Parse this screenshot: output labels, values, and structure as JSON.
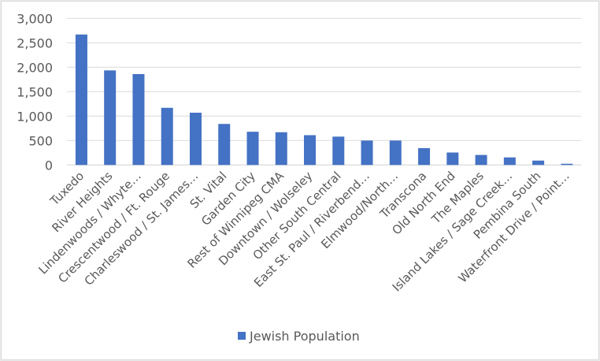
{
  "chart_data": {
    "type": "bar",
    "title": "",
    "xlabel": "",
    "ylabel": "",
    "ylim": [
      0,
      3000
    ],
    "yticks": [
      0,
      500,
      1000,
      1500,
      2000,
      2500,
      3000
    ],
    "ytick_labels": [
      "0",
      "500",
      "1,000",
      "1,500",
      "2,000",
      "2,500",
      "3,000"
    ],
    "grid": true,
    "legend_position": "bottom",
    "categories": [
      "Tuxedo",
      "River Heights",
      "Lindenwoods / Whyte…",
      "Crescentwood / Ft. Rouge",
      "Charleswood / St. James…",
      "St. Vital",
      "Garden City",
      "Rest of Winnipeg CMA",
      "Downtown / Wolseley",
      "Other South Central",
      "East St. Paul / Riverbend…",
      "Elmwood/North…",
      "Transcona",
      "Old North End",
      "The Maples",
      "Island Lakes / Sage Creek…",
      "Pembina South",
      "Waterfront Drive / Point…"
    ],
    "series": [
      {
        "name": "Jewish Population",
        "color": "#4472c4",
        "values": [
          2670,
          1935,
          1860,
          1170,
          1070,
          840,
          680,
          670,
          610,
          580,
          500,
          500,
          345,
          255,
          205,
          155,
          90,
          25
        ]
      }
    ]
  }
}
